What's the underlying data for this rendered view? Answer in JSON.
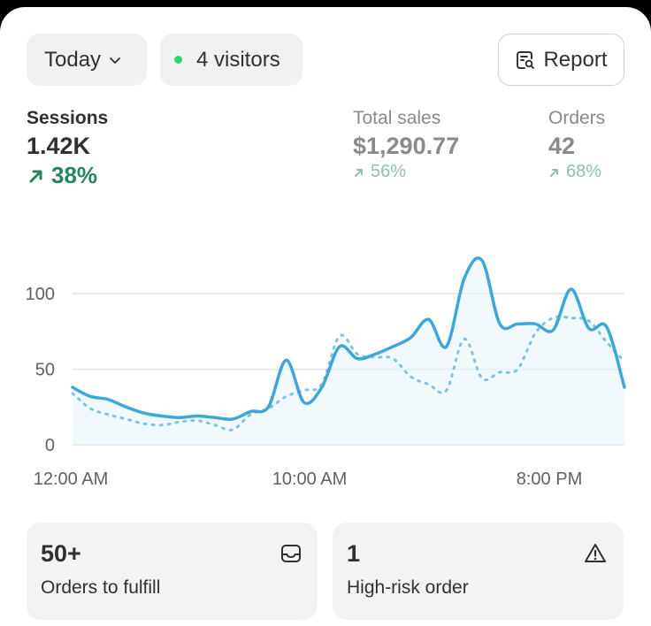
{
  "header": {
    "period_label": "Today",
    "visitors_label": "4 visitors",
    "report_label": "Report"
  },
  "metrics": [
    {
      "label": "Sessions",
      "value": "1.42K",
      "change": "38%"
    },
    {
      "label": "Total sales",
      "value": "$1,290.77",
      "change": "56%"
    },
    {
      "label": "Orders",
      "value": "42",
      "change": "68%"
    }
  ],
  "colors": {
    "accent_line": "#3ea7d8",
    "positive_green": "#29845a",
    "positive_green_dim": "#8fc1a8",
    "live_dot": "#2ed47a",
    "grid": "#e3e3e3"
  },
  "chart_data": {
    "type": "line",
    "y_ticks": [
      "100",
      "50",
      "0"
    ],
    "x_tick_labels": [
      "12:00 AM",
      "10:00 AM",
      "8:00 PM"
    ],
    "ylim": [
      0,
      120
    ],
    "grid": true,
    "series": [
      {
        "style": "solid",
        "values": [
          38,
          32,
          30,
          25,
          21,
          19,
          18,
          19,
          18,
          17,
          22,
          25,
          56,
          28,
          38,
          65,
          57,
          60,
          65,
          71,
          83,
          65,
          110,
          122,
          80,
          80,
          80,
          76,
          103,
          77,
          78,
          38
        ]
      },
      {
        "style": "dotted",
        "values": [
          34,
          24,
          20,
          17,
          14,
          13,
          15,
          16,
          13,
          10,
          20,
          24,
          32,
          36,
          40,
          72,
          60,
          58,
          57,
          45,
          40,
          36,
          70,
          44,
          48,
          50,
          74,
          84,
          84,
          82,
          68,
          55
        ]
      }
    ]
  },
  "tiles": [
    {
      "value": "50+",
      "label": "Orders to fulfill",
      "icon": "inbox-icon"
    },
    {
      "value": "1",
      "label": "High-risk order",
      "icon": "warning-icon"
    }
  ]
}
